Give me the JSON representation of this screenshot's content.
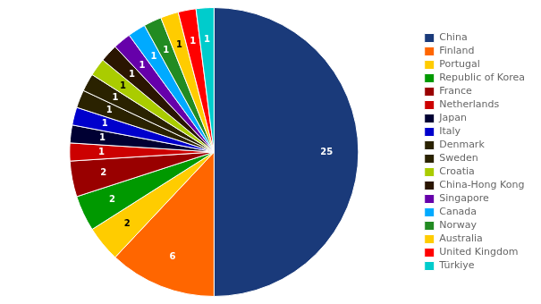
{
  "chart_data": {
    "type": "pie",
    "categories": [
      "China",
      "Finland",
      "Portugal",
      "Republic of Korea",
      "France",
      "Netherlands",
      "Japan",
      "Italy",
      "Denmark",
      "Sweden",
      "Croatia",
      "China-Hong Kong",
      "Singapore",
      "Canada",
      "Norway",
      "Australia",
      "United Kingdom",
      "Türkiye"
    ],
    "values": [
      25,
      6,
      2,
      2,
      2,
      1,
      1,
      1,
      1,
      1,
      1,
      1,
      1,
      1,
      1,
      1,
      1,
      1
    ],
    "colors": [
      "#1a3a7a",
      "#ff6600",
      "#ffcc00",
      "#009900",
      "#990000",
      "#cc0000",
      "#000033",
      "#0000cc",
      "#2a2200",
      "#2a2200",
      "#aacc00",
      "#2a1500",
      "#6600aa",
      "#00aaff",
      "#228B22",
      "#ffcc00",
      "#ff0000",
      "#00cccc"
    ],
    "data_labels": true,
    "legend": "right"
  }
}
